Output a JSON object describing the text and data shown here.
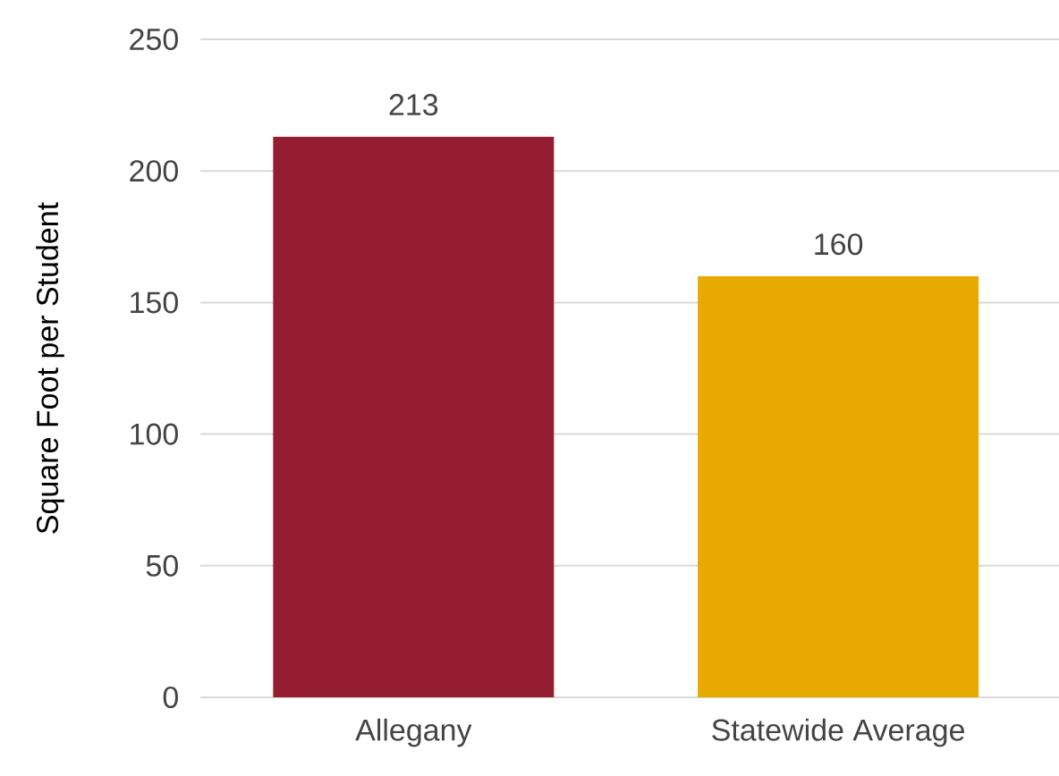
{
  "chart_data": {
    "type": "bar",
    "ylabel": "Square Foot per Student",
    "categories": [
      "Allegany",
      "Statewide Average"
    ],
    "values": [
      213,
      160
    ],
    "colors": [
      "#951d31",
      "#e8a900"
    ],
    "ylim": [
      0,
      250
    ],
    "yticks": [
      0,
      50,
      100,
      150,
      200,
      250
    ],
    "grid": "y",
    "data_labels": true
  }
}
